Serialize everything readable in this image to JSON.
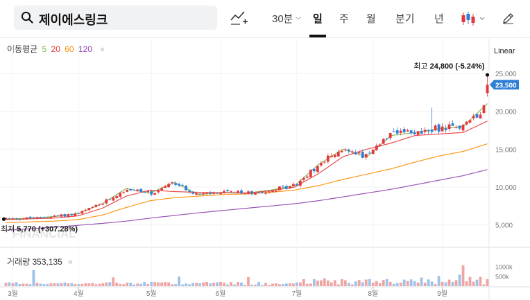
{
  "header": {
    "search_value": "제이에스링크",
    "tabs": [
      {
        "label": "30분",
        "selected": false,
        "has_dropdown": true
      },
      {
        "label": "일",
        "selected": true
      },
      {
        "label": "주",
        "selected": false
      },
      {
        "label": "월",
        "selected": false
      },
      {
        "label": "분기",
        "selected": false
      },
      {
        "label": "년",
        "selected": false
      }
    ],
    "icons": [
      "search-icon",
      "indicator-add-icon",
      "candle-type-icon",
      "pencil-icon"
    ]
  },
  "legend": {
    "ma_title": "이동평균",
    "ma_periods": [
      {
        "label": "5",
        "color": "#7cb342"
      },
      {
        "label": "20",
        "color": "#e53935"
      },
      {
        "label": "60",
        "color": "#fb8c00"
      },
      {
        "label": "120",
        "color": "#8e44ad"
      }
    ],
    "volume_title": "거래량",
    "volume_value": "353,135"
  },
  "scale_mode": "Linear",
  "annotations": {
    "high_label": "최고",
    "high_value": "24,800 (-5.24%)",
    "low_label": "최저",
    "low_value": "5,770 (+307.28%)",
    "current_price": "23,500"
  },
  "colors": {
    "up": "#e4393c",
    "down": "#2f7fd6",
    "current_tag": "#2f7fd6"
  },
  "chart_data": {
    "type": "candlestick",
    "y_ticks": [
      "25,000",
      "20,000",
      "15,000",
      "10,000",
      "5,000"
    ],
    "y_tick_values": [
      25000,
      20000,
      15000,
      10000,
      5000
    ],
    "volume_ticks": [
      "1000k",
      "500k"
    ],
    "volume_tick_values": [
      1000000,
      500000
    ],
    "x_labels": [
      "3월",
      "4월",
      "5월",
      "6월",
      "7월",
      "8월",
      "9월"
    ],
    "ylim": [
      2500,
      27000
    ],
    "high": 24800,
    "low": 5770,
    "last": 23500,
    "ma_anchors": {
      "ma5": [
        5770,
        5900,
        6100,
        6500,
        7800,
        9800,
        9200,
        10600,
        9000,
        9300,
        9200,
        9600,
        10200,
        13000,
        15000,
        14000,
        16800,
        17200,
        17700,
        18000,
        21000
      ],
      "ma20": [
        5700,
        5800,
        5900,
        6200,
        7200,
        8800,
        9600,
        9400,
        9300,
        9250,
        9200,
        9500,
        10000,
        11800,
        14000,
        15000,
        15800,
        16800,
        17000,
        17200,
        18700
      ],
      "ma60": [
        5300,
        5400,
        5500,
        5700,
        6300,
        7300,
        8200,
        8600,
        8800,
        9000,
        9100,
        9300,
        9600,
        10200,
        11000,
        11700,
        12400,
        13300,
        14100,
        14700,
        15700
      ],
      "ma120": [
        4300,
        4500,
        4700,
        4950,
        5200,
        5500,
        5900,
        6250,
        6600,
        6900,
        7200,
        7500,
        7800,
        8200,
        8700,
        9200,
        9700,
        10300,
        10900,
        11500,
        12300
      ]
    }
  }
}
